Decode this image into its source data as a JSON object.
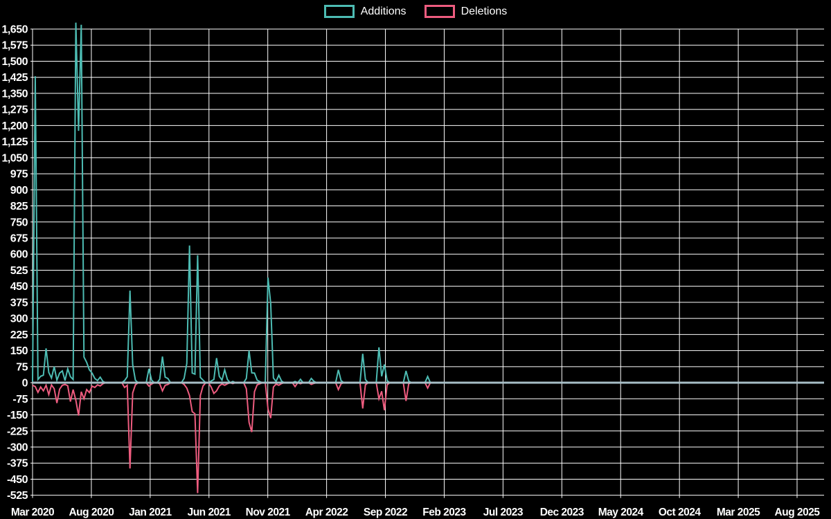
{
  "legend": {
    "items": [
      {
        "id": "additions",
        "label": "Additions",
        "color": "#4dbcb3"
      },
      {
        "id": "deletions",
        "label": "Deletions",
        "color": "#ee5c7f"
      }
    ]
  },
  "chart_data": {
    "type": "line",
    "title": "",
    "xlabel": "",
    "ylabel": "",
    "background_color": "#000000",
    "gridline_color": "#ffffff",
    "zero_line_color": "#a7bfc7",
    "grid": true,
    "legend_position": "top-center",
    "x_tick_labels": [
      "Mar 2020",
      "Aug 2020",
      "Jan 2021",
      "Jun 2021",
      "Nov 2021",
      "Apr 2022",
      "Sep 2022",
      "Feb 2023",
      "Jul 2023",
      "Dec 2023",
      "May 2024",
      "Oct 2024",
      "Mar 2025",
      "Aug 2025"
    ],
    "y_ticks": [
      1650,
      1575,
      1500,
      1425,
      1350,
      1275,
      1200,
      1125,
      1050,
      975,
      900,
      825,
      750,
      675,
      600,
      525,
      450,
      375,
      300,
      225,
      150,
      75,
      0,
      -75,
      -150,
      -225,
      -300,
      -375,
      -450,
      -525
    ],
    "y_tick_labels": [
      "1,650",
      "1,575",
      "1,500",
      "1,425",
      "1,350",
      "1,275",
      "1,200",
      "1,125",
      "1,050",
      "975",
      "900",
      "825",
      "750",
      "675",
      "600",
      "525",
      "450",
      "375",
      "300",
      "225",
      "150",
      "75",
      "0",
      "-75",
      "-150",
      "-225",
      "-300",
      "-375",
      "-450",
      "-525"
    ],
    "ylim": [
      -525,
      1680
    ],
    "x_unit": "week",
    "total_weeks": 293,
    "weeks_per_x_tick": 21.73,
    "series": [
      {
        "name": "Additions",
        "color": "#4dbcb3",
        "baseline": 0,
        "sparse_weekly_values": {
          "0": 5,
          "1": 1430,
          "2": 15,
          "3": 30,
          "4": 35,
          "5": 160,
          "6": 48,
          "7": 22,
          "8": 75,
          "9": 12,
          "10": 45,
          "11": 55,
          "12": 10,
          "13": 65,
          "14": 28,
          "15": 15,
          "16": 1680,
          "17": 1175,
          "18": 1670,
          "19": 120,
          "20": 95,
          "21": 60,
          "22": 45,
          "23": 20,
          "24": 10,
          "25": 26,
          "26": 6,
          "34": 10,
          "35": 28,
          "36": 430,
          "37": 85,
          "38": 12,
          "43": 65,
          "44": 12,
          "47": 16,
          "48": 122,
          "49": 26,
          "50": 20,
          "56": 20,
          "57": 90,
          "58": 640,
          "59": 45,
          "60": 40,
          "61": 595,
          "62": 25,
          "63": 12,
          "66": 8,
          "67": 15,
          "68": 115,
          "69": 30,
          "70": 12,
          "71": 60,
          "72": 15,
          "74": 6,
          "79": 20,
          "80": 150,
          "81": 46,
          "82": 45,
          "83": 12,
          "84": 5,
          "87": 490,
          "88": 370,
          "89": 22,
          "90": 6,
          "91": 35,
          "92": 8,
          "97": 6,
          "99": 16,
          "103": 20,
          "104": 6,
          "113": 60,
          "114": 10,
          "122": 135,
          "123": 15,
          "128": 165,
          "129": 30,
          "130": 85,
          "131": 10,
          "138": 55,
          "139": 8,
          "146": 29
        }
      },
      {
        "name": "Deletions",
        "color": "#ee5c7f",
        "baseline": 0,
        "sparse_weekly_values": {
          "0": -12,
          "1": -18,
          "2": -45,
          "3": -20,
          "4": -38,
          "5": -12,
          "6": -55,
          "7": -10,
          "8": -28,
          "9": -95,
          "10": -30,
          "11": -12,
          "12": -8,
          "13": -14,
          "14": -88,
          "15": -32,
          "16": -82,
          "17": -153,
          "18": -42,
          "19": -75,
          "20": -32,
          "21": -46,
          "22": -16,
          "23": -22,
          "24": -10,
          "25": -15,
          "26": -5,
          "34": -22,
          "35": -12,
          "36": -400,
          "37": -48,
          "38": -10,
          "43": -16,
          "44": -6,
          "47": -5,
          "48": -38,
          "49": -12,
          "50": -8,
          "56": -8,
          "57": -25,
          "58": -60,
          "59": -135,
          "60": -145,
          "61": -515,
          "62": -60,
          "63": -15,
          "66": -20,
          "67": -50,
          "68": -38,
          "69": -15,
          "70": -6,
          "71": -12,
          "72": -5,
          "74": -4,
          "79": -28,
          "80": -185,
          "81": -230,
          "82": -42,
          "83": -10,
          "84": -5,
          "87": -122,
          "88": -165,
          "89": -20,
          "90": -6,
          "91": -12,
          "92": -4,
          "97": -18,
          "99": -5,
          "103": -8,
          "104": -3,
          "113": -32,
          "114": -5,
          "122": -120,
          "123": -10,
          "128": -75,
          "129": -40,
          "130": -128,
          "131": -10,
          "138": -85,
          "139": -5,
          "146": -25
        }
      }
    ]
  }
}
